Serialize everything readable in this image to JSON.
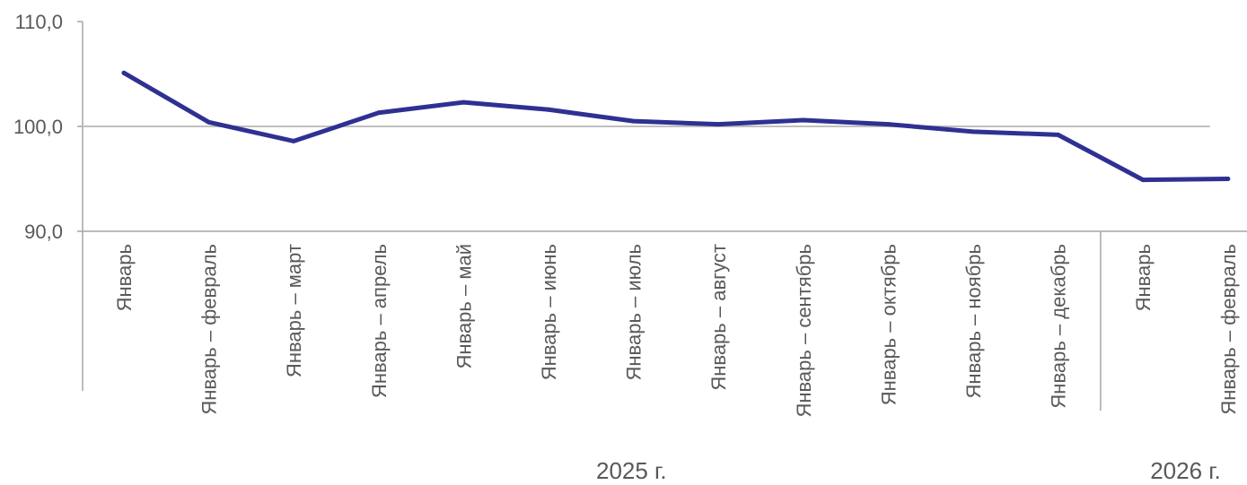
{
  "chart_data": {
    "type": "line",
    "title": "",
    "xlabel": "",
    "ylabel": "",
    "ylim": [
      90,
      110
    ],
    "yticks": [
      "90,0",
      "100,0",
      "110,0"
    ],
    "grid": false,
    "legend": "none",
    "categories": [
      "Январь",
      "Январь – февраль",
      "Январь – март",
      "Январь – апрель",
      "Январь – май",
      "Январь – июнь",
      "Январь – июль",
      "Январь – август",
      "Январь – сентябрь",
      "Январь – октябрь",
      "Январь – ноябрь",
      "Январь – декабрь",
      "Январь",
      "Январь – февраль"
    ],
    "year_groups": [
      {
        "label": "2025 г.",
        "count": 12
      },
      {
        "label": "2026 г.",
        "count": 2
      }
    ],
    "reference_line": 100,
    "series": [
      {
        "values": [
          105.1,
          100.4,
          98.6,
          101.3,
          102.3,
          101.6,
          100.5,
          100.2,
          100.6,
          100.2,
          99.5,
          99.2,
          94.9,
          95.0
        ]
      }
    ]
  },
  "colors": {
    "line": "#2e3192",
    "axis": "#a6a6a6",
    "reference": "#bfbfbf",
    "text": "#595959"
  }
}
